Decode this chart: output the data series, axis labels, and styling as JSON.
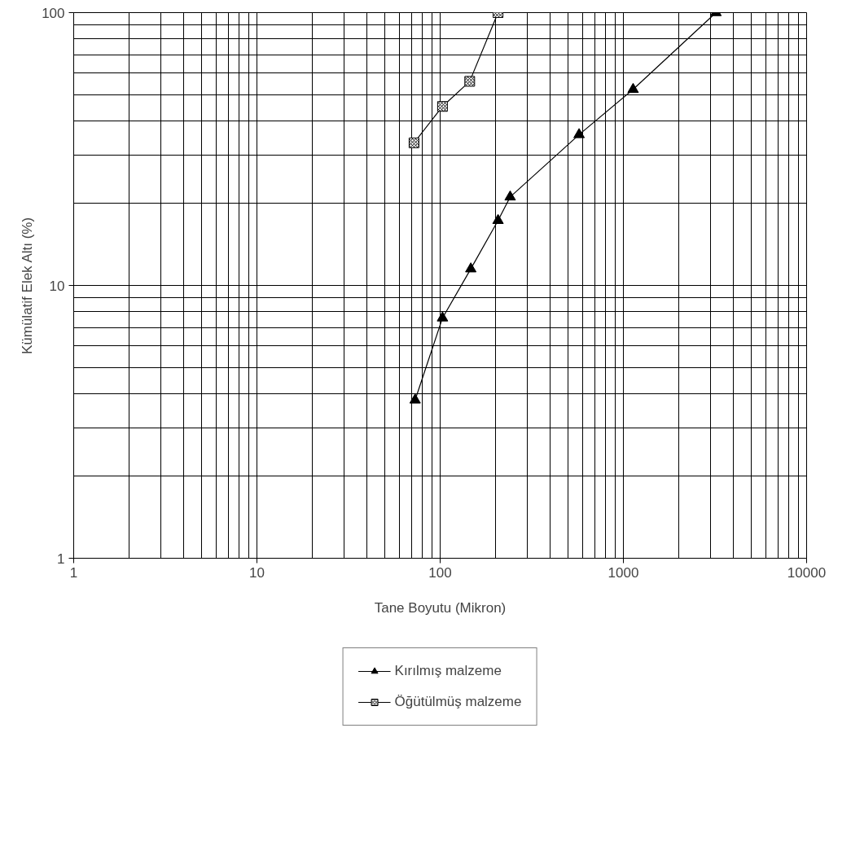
{
  "chart_data": {
    "type": "line",
    "xlabel": "Tane Boyutu (Mikron)",
    "ylabel": "Kümülatif Elek Altı (%)",
    "log": "xy",
    "xlim": [
      1,
      10000
    ],
    "ylim": [
      1,
      100
    ],
    "xticks": [
      1,
      10,
      100,
      1000,
      10000
    ],
    "yticks": [
      1,
      10,
      100
    ],
    "grid": true,
    "legend": "bottom",
    "line_style": "solid",
    "series": [
      {
        "name": "Kırılmış malzeme",
        "color": "#000000",
        "marker": "triangle",
        "x": [
          73,
          103,
          147,
          207,
          241,
          573,
          1130,
          3200
        ],
        "values": [
          3.8,
          7.6,
          11.5,
          17.3,
          21.1,
          35.7,
          52.3,
          100
        ]
      },
      {
        "name": "Öğütülmüş malzeme",
        "color": "#000000",
        "marker": "square",
        "x": [
          72,
          103,
          145,
          207
        ],
        "values": [
          33.3,
          45.3,
          56,
          100
        ]
      }
    ]
  }
}
